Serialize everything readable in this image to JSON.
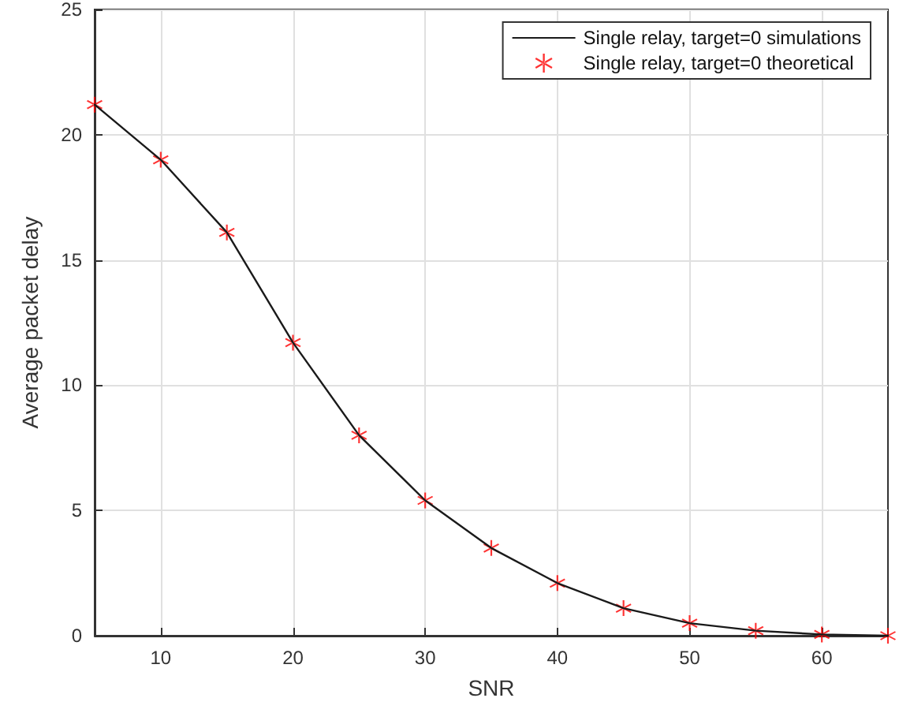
{
  "chart_data": {
    "type": "line",
    "xlabel": "SNR",
    "ylabel": "Average packet delay",
    "x": [
      5,
      10,
      15,
      20,
      25,
      30,
      35,
      40,
      45,
      50,
      55,
      60,
      65
    ],
    "series": [
      {
        "name": "Single relay, target=0 simulations",
        "color": "#1a1a1a",
        "marker": "none",
        "line_style": "solid",
        "values": [
          21.2,
          19.0,
          16.1,
          11.7,
          8.0,
          5.4,
          3.5,
          2.1,
          1.1,
          0.5,
          0.2,
          0.05,
          0
        ]
      },
      {
        "name": "Single relay, target=0 theoretical",
        "type": "scatter",
        "color": "#ff0000",
        "marker": "cross",
        "values": [
          21.2,
          19.0,
          16.1,
          11.7,
          8.0,
          5.4,
          3.5,
          2.1,
          1.1,
          0.5,
          0.2,
          0.05,
          0
        ]
      }
    ],
    "xlim": [
      5,
      65
    ],
    "xticks": [
      10,
      20,
      30,
      40,
      50,
      60
    ],
    "ylim": [
      0,
      25
    ],
    "yticks": [
      0,
      5,
      10,
      15,
      20,
      25
    ],
    "grid": true,
    "legend": "top right"
  }
}
